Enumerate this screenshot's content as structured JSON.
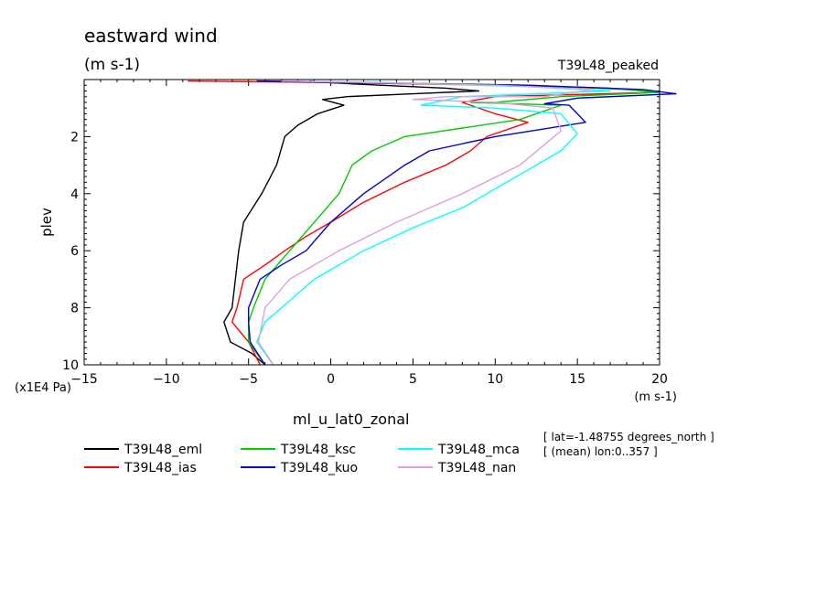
{
  "chart_data": {
    "type": "line",
    "title": "eastward wind",
    "units": "(m s-1)",
    "experiment_label": "T39L48_peaked",
    "xlabel": "ml_u_lat0_zonal",
    "x_units": "(m s-1)",
    "ylabel": "plev",
    "y_units": "(x1E4 Pa)",
    "xlim": [
      -15,
      20
    ],
    "ylim": [
      10,
      0
    ],
    "y_inverted": true,
    "x_ticks": [
      -15,
      -10,
      -5,
      0,
      5,
      10,
      15,
      20
    ],
    "y_ticks": [
      2,
      4,
      6,
      8,
      10
    ],
    "grid": false,
    "legend_position": "bottom-left",
    "notes": [
      "[ lat=-1.48755 degrees_north ]",
      "[ (mean) lon:0..357 ]"
    ],
    "series": [
      {
        "name": "T39L48_eml",
        "color": "#000000",
        "points": [
          [
            -1.3,
            0.05
          ],
          [
            -0.5,
            0.1
          ],
          [
            3,
            0.2
          ],
          [
            7,
            0.3
          ],
          [
            9,
            0.4
          ],
          [
            5,
            0.5
          ],
          [
            1,
            0.6
          ],
          [
            -0.5,
            0.7
          ],
          [
            0.8,
            0.9
          ],
          [
            -0.8,
            1.2
          ],
          [
            -2,
            1.6
          ],
          [
            -2.8,
            2
          ],
          [
            -3.3,
            3
          ],
          [
            -4.2,
            4
          ],
          [
            -5.3,
            5
          ],
          [
            -5.6,
            6
          ],
          [
            -5.8,
            7
          ],
          [
            -6,
            8
          ],
          [
            -6.5,
            8.5
          ],
          [
            -6.1,
            9.2
          ],
          [
            -4.8,
            9.6
          ],
          [
            -4,
            10
          ]
        ]
      },
      {
        "name": "T39L48_ias",
        "color": "#ff0000",
        "points": [
          [
            -8.7,
            0.05
          ],
          [
            -1,
            0.1
          ],
          [
            10,
            0.2
          ],
          [
            17,
            0.3
          ],
          [
            20,
            0.45
          ],
          [
            10,
            0.6
          ],
          [
            8,
            0.8
          ],
          [
            10,
            1.2
          ],
          [
            12,
            1.5
          ],
          [
            9.5,
            2
          ],
          [
            8.5,
            2.5
          ],
          [
            7,
            3
          ],
          [
            4.5,
            3.6
          ],
          [
            2,
            4.3
          ],
          [
            0,
            5
          ],
          [
            -1.5,
            5.5
          ],
          [
            -2.8,
            6
          ],
          [
            -4,
            6.5
          ],
          [
            -5.3,
            7
          ],
          [
            -5.7,
            8
          ],
          [
            -6,
            8.5
          ],
          [
            -5,
            9.2
          ],
          [
            -4.3,
            10
          ]
        ]
      },
      {
        "name": "T39L48_ksc",
        "color": "#00cc00",
        "points": [
          [
            -4,
            0.05
          ],
          [
            2,
            0.1
          ],
          [
            12,
            0.2
          ],
          [
            18,
            0.35
          ],
          [
            20,
            0.45
          ],
          [
            14,
            0.6
          ],
          [
            10,
            0.8
          ],
          [
            8.5,
            0.8
          ],
          [
            14,
            0.9
          ],
          [
            11.5,
            1.4
          ],
          [
            4.5,
            2
          ],
          [
            2.5,
            2.5
          ],
          [
            1.3,
            3
          ],
          [
            0.5,
            4
          ],
          [
            -1,
            5
          ],
          [
            -2.5,
            6
          ],
          [
            -4,
            7
          ],
          [
            -4.7,
            8
          ],
          [
            -5,
            8.5
          ],
          [
            -5,
            9.2
          ],
          [
            -4,
            10
          ]
        ]
      },
      {
        "name": "T39L48_kuo",
        "color": "#0000cc",
        "points": [
          [
            -4.5,
            0.05
          ],
          [
            0,
            0.1
          ],
          [
            12,
            0.2
          ],
          [
            19,
            0.35
          ],
          [
            21,
            0.5
          ],
          [
            15,
            0.65
          ],
          [
            13,
            0.85
          ],
          [
            14.5,
            0.9
          ],
          [
            15.5,
            1.5
          ],
          [
            10,
            2
          ],
          [
            6,
            2.5
          ],
          [
            4.5,
            3
          ],
          [
            3,
            3.6
          ],
          [
            2,
            4
          ],
          [
            0,
            5
          ],
          [
            -1.5,
            6
          ],
          [
            -3,
            6.5
          ],
          [
            -4.3,
            7
          ],
          [
            -5,
            8
          ],
          [
            -5,
            8.5
          ],
          [
            -4.9,
            9.2
          ],
          [
            -4,
            10
          ]
        ]
      },
      {
        "name": "T39L48_mca",
        "color": "#00ffff",
        "points": [
          [
            -3,
            0.05
          ],
          [
            3,
            0.1
          ],
          [
            12,
            0.25
          ],
          [
            17,
            0.4
          ],
          [
            8,
            0.6
          ],
          [
            5.5,
            0.9
          ],
          [
            10,
            1
          ],
          [
            14,
            1.2
          ],
          [
            15,
            1.9
          ],
          [
            14,
            2.5
          ],
          [
            11,
            3.5
          ],
          [
            8,
            4.5
          ],
          [
            5,
            5.2
          ],
          [
            2,
            6
          ],
          [
            -1,
            7
          ],
          [
            -3,
            8
          ],
          [
            -4,
            8.5
          ],
          [
            -4.5,
            9.2
          ],
          [
            -3.5,
            10
          ]
        ]
      },
      {
        "name": "T39L48_nan",
        "color": "#dda0dd",
        "points": [
          [
            -3,
            0.05
          ],
          [
            1.5,
            0.1
          ],
          [
            10,
            0.2
          ],
          [
            16,
            0.35
          ],
          [
            13,
            0.6
          ],
          [
            7,
            0.6
          ],
          [
            5,
            0.7
          ],
          [
            10,
            0.8
          ],
          [
            13.5,
            1
          ],
          [
            14,
            1.8
          ],
          [
            11.5,
            3
          ],
          [
            8,
            4
          ],
          [
            4,
            5
          ],
          [
            0.5,
            6
          ],
          [
            -2.5,
            7
          ],
          [
            -4,
            8
          ],
          [
            -4.4,
            9.2
          ],
          [
            -3.5,
            10
          ]
        ]
      }
    ]
  }
}
